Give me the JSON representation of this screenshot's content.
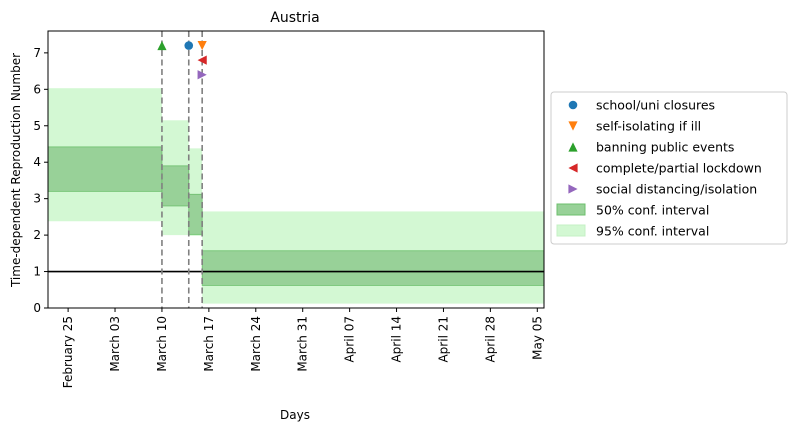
{
  "chart_data": {
    "type": "step-area",
    "title": "Austria",
    "xlabel": "Days",
    "ylabel": "Time-dependent Reproduction Number",
    "xlim": [
      "2020-02-22",
      "2020-05-06"
    ],
    "ylim": [
      0,
      7.6
    ],
    "yticks": [
      0,
      1,
      2,
      3,
      4,
      5,
      6,
      7
    ],
    "xticks": [
      {
        "date": "2020-02-25",
        "label": "February 25"
      },
      {
        "date": "2020-03-03",
        "label": "March 03"
      },
      {
        "date": "2020-03-10",
        "label": "March 10"
      },
      {
        "date": "2020-03-17",
        "label": "March 17"
      },
      {
        "date": "2020-03-24",
        "label": "March 24"
      },
      {
        "date": "2020-03-31",
        "label": "March 31"
      },
      {
        "date": "2020-04-07",
        "label": "April 07"
      },
      {
        "date": "2020-04-14",
        "label": "April 14"
      },
      {
        "date": "2020-04-21",
        "label": "April 21"
      },
      {
        "date": "2020-04-28",
        "label": "April 28"
      },
      {
        "date": "2020-05-05",
        "label": "May 05"
      }
    ],
    "intervals": [
      {
        "start": "2020-02-22",
        "end": "2020-03-10",
        "ci50": [
          3.2,
          4.42
        ],
        "ci95": [
          2.38,
          6.03
        ]
      },
      {
        "start": "2020-03-10",
        "end": "2020-03-14",
        "ci50": [
          2.8,
          3.9
        ],
        "ci95": [
          2.0,
          5.15
        ]
      },
      {
        "start": "2020-03-14",
        "end": "2020-03-16",
        "ci50": [
          2.02,
          3.12
        ],
        "ci95": [
          1.98,
          4.38
        ]
      },
      {
        "start": "2020-03-16",
        "end": "2020-05-06",
        "ci50": [
          0.62,
          1.57
        ],
        "ci95": [
          0.12,
          2.65
        ]
      }
    ],
    "reference_line": 1.0,
    "interventions": [
      {
        "name": "school/uni closures",
        "date": "2020-03-14",
        "y": 7.2,
        "marker": "circle",
        "color": "#1f77b4"
      },
      {
        "name": "self-isolating if ill",
        "date": "2020-03-16",
        "y": 7.2,
        "marker": "triangle-down",
        "color": "#ff7f0e"
      },
      {
        "name": "banning public events",
        "date": "2020-03-10",
        "y": 7.2,
        "marker": "triangle-up",
        "color": "#2ca02c"
      },
      {
        "name": "complete/partial lockdown",
        "date": "2020-03-16",
        "y": 6.8,
        "marker": "triangle-left",
        "color": "#d62728"
      },
      {
        "name": "social distancing/isolation",
        "date": "2020-03-16",
        "y": 6.4,
        "marker": "triangle-right",
        "color": "#9467bd"
      }
    ],
    "vlines": [
      "2020-03-10",
      "2020-03-14",
      "2020-03-16"
    ],
    "legend": {
      "placement": "right",
      "entries": [
        {
          "label": "school/uni closures",
          "kind": "marker",
          "ref": 0
        },
        {
          "label": "self-isolating if ill",
          "kind": "marker",
          "ref": 1
        },
        {
          "label": "banning public events",
          "kind": "marker",
          "ref": 2
        },
        {
          "label": "complete/partial lockdown",
          "kind": "marker",
          "ref": 3
        },
        {
          "label": "social distancing/isolation",
          "kind": "marker",
          "ref": 4
        },
        {
          "label": "50% conf. interval",
          "kind": "patch",
          "fill": "#98d198",
          "stroke": "#6cbf6c"
        },
        {
          "label": "95% conf. interval",
          "kind": "patch",
          "fill": "#d3f8d3",
          "stroke": "#c4f0c4"
        }
      ]
    },
    "colors": {
      "ci50": "#98d198",
      "ci50_edge": "#6cbf6c",
      "ci95": "#d3f8d3",
      "vline": "#808080",
      "reference": "#000000"
    }
  }
}
